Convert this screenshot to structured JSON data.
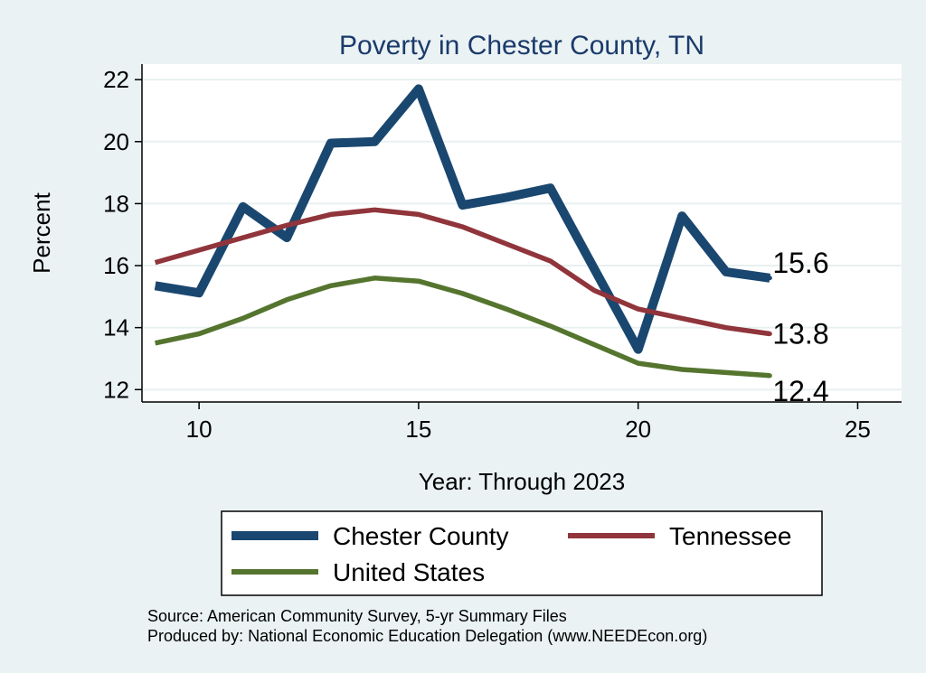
{
  "chart_data": {
    "type": "line",
    "title": "Poverty in Chester County, TN",
    "xlabel": "Year: Through 2023",
    "ylabel": "Percent",
    "xlim": [
      8.7,
      26
    ],
    "ylim": [
      11.6,
      22.5
    ],
    "xticks": [
      10,
      15,
      20,
      25
    ],
    "yticks": [
      12,
      14,
      16,
      18,
      20,
      22
    ],
    "grid": "horizontal",
    "series": [
      {
        "name": "Chester County",
        "color": "#1a476f",
        "x": [
          9,
          10,
          11,
          12,
          13,
          14,
          15,
          16,
          17,
          18,
          19,
          20,
          21,
          22,
          23
        ],
        "values": [
          15.35,
          15.12,
          17.9,
          16.9,
          19.95,
          20.0,
          21.7,
          17.95,
          18.2,
          18.5,
          15.9,
          13.3,
          17.6,
          15.8,
          15.6
        ],
        "end_label": "15.6"
      },
      {
        "name": "Tennessee",
        "color": "#90353b",
        "x": [
          9,
          10,
          11,
          12,
          13,
          14,
          15,
          16,
          17,
          18,
          19,
          20,
          21,
          22,
          23
        ],
        "values": [
          16.1,
          16.5,
          16.9,
          17.3,
          17.65,
          17.8,
          17.65,
          17.25,
          16.7,
          16.15,
          15.2,
          14.6,
          14.3,
          14.0,
          13.8
        ],
        "end_label": "13.8"
      },
      {
        "name": "United States",
        "color": "#55752f",
        "x": [
          9,
          10,
          11,
          12,
          13,
          14,
          15,
          16,
          17,
          18,
          19,
          20,
          21,
          22,
          23
        ],
        "values": [
          13.5,
          13.8,
          14.3,
          14.9,
          15.35,
          15.6,
          15.5,
          15.1,
          14.6,
          14.05,
          13.45,
          12.85,
          12.65,
          12.55,
          12.45
        ],
        "end_label": "12.4"
      }
    ],
    "legend": {
      "position": "bottom",
      "entries": [
        "Chester County",
        "Tennessee",
        "United States"
      ]
    },
    "notes": [
      "Source: American Community Survey, 5-yr Summary Files",
      "Produced by: National Economic Education Delegation (www.NEEDEcon.org)"
    ]
  },
  "colors": {
    "background": "#eaf2f3",
    "plot_background": "#ffffff",
    "title": "#1a3a6b"
  }
}
